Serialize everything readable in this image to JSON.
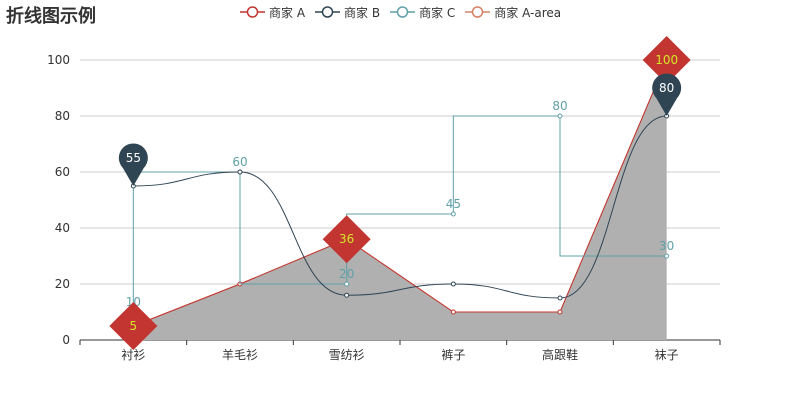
{
  "chart_data": {
    "type": "line",
    "title": "折线图示例",
    "categories": [
      "衬衫",
      "羊毛衫",
      "雪纺衫",
      "裤子",
      "高跟鞋",
      "袜子"
    ],
    "ylim": [
      0,
      100
    ],
    "yticks": [
      0,
      20,
      40,
      60,
      80,
      100
    ],
    "grid": true,
    "legend_position": "top",
    "series": [
      {
        "name": "商家 A",
        "values": [
          5,
          20,
          36,
          10,
          10,
          100
        ],
        "color": "#c23531",
        "line_style": "straight",
        "mark_points": [
          {
            "label": "5",
            "index": 0
          },
          {
            "label": "36",
            "index": 2
          },
          {
            "label": "100",
            "index": 5
          }
        ],
        "mark_point_shape": "diamond",
        "mark_point_color": "#c23531",
        "mark_point_text_color": "#d4e629"
      },
      {
        "name": "商家 B",
        "values": [
          55,
          60,
          16,
          20,
          15,
          80
        ],
        "color": "#2f4554",
        "line_style": "smooth",
        "mark_points": [
          {
            "label": "55",
            "index": 0
          },
          {
            "label": "80",
            "index": 5
          }
        ],
        "mark_point_shape": "pin",
        "mark_point_color": "#2f4554",
        "mark_point_text_color": "#ffffff"
      },
      {
        "name": "商家 C",
        "values": [
          10,
          60,
          20,
          45,
          80,
          30
        ],
        "color": "#61a0a8",
        "line_style": "step",
        "show_labels": true
      },
      {
        "name": "商家 A-area",
        "values": [
          5,
          20,
          36,
          10,
          10,
          100
        ],
        "color": "#d48265",
        "line_style": "area",
        "area_fill": "#b0b0b0"
      }
    ]
  }
}
